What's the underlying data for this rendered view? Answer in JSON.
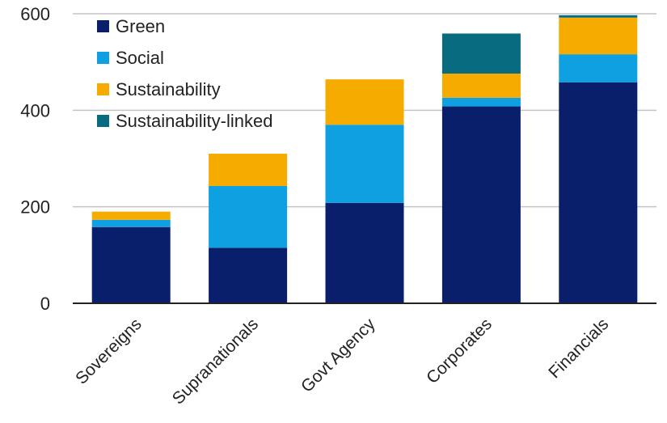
{
  "chart_data": {
    "type": "bar",
    "stacked": true,
    "categories": [
      "Sovereigns",
      "Supranationals",
      "Govt Agency",
      "Corporates",
      "Financials"
    ],
    "series": [
      {
        "name": "Green",
        "color": "#0a1f6b",
        "values": [
          158,
          115,
          208,
          408,
          458
        ]
      },
      {
        "name": "Social",
        "color": "#0ea0e0",
        "values": [
          15,
          128,
          162,
          18,
          58
        ]
      },
      {
        "name": "Sustainability",
        "color": "#f5ab00",
        "values": [
          17,
          67,
          94,
          50,
          76
        ]
      },
      {
        "name": "Sustainability-linked",
        "color": "#086b80",
        "values": [
          0,
          0,
          0,
          83,
          5
        ]
      }
    ],
    "yticks": [
      "0",
      "200",
      "400",
      "600"
    ],
    "ylim": [
      0,
      600
    ],
    "grid": true,
    "legend": "top-left",
    "title": "",
    "xlabel": "",
    "ylabel": ""
  }
}
